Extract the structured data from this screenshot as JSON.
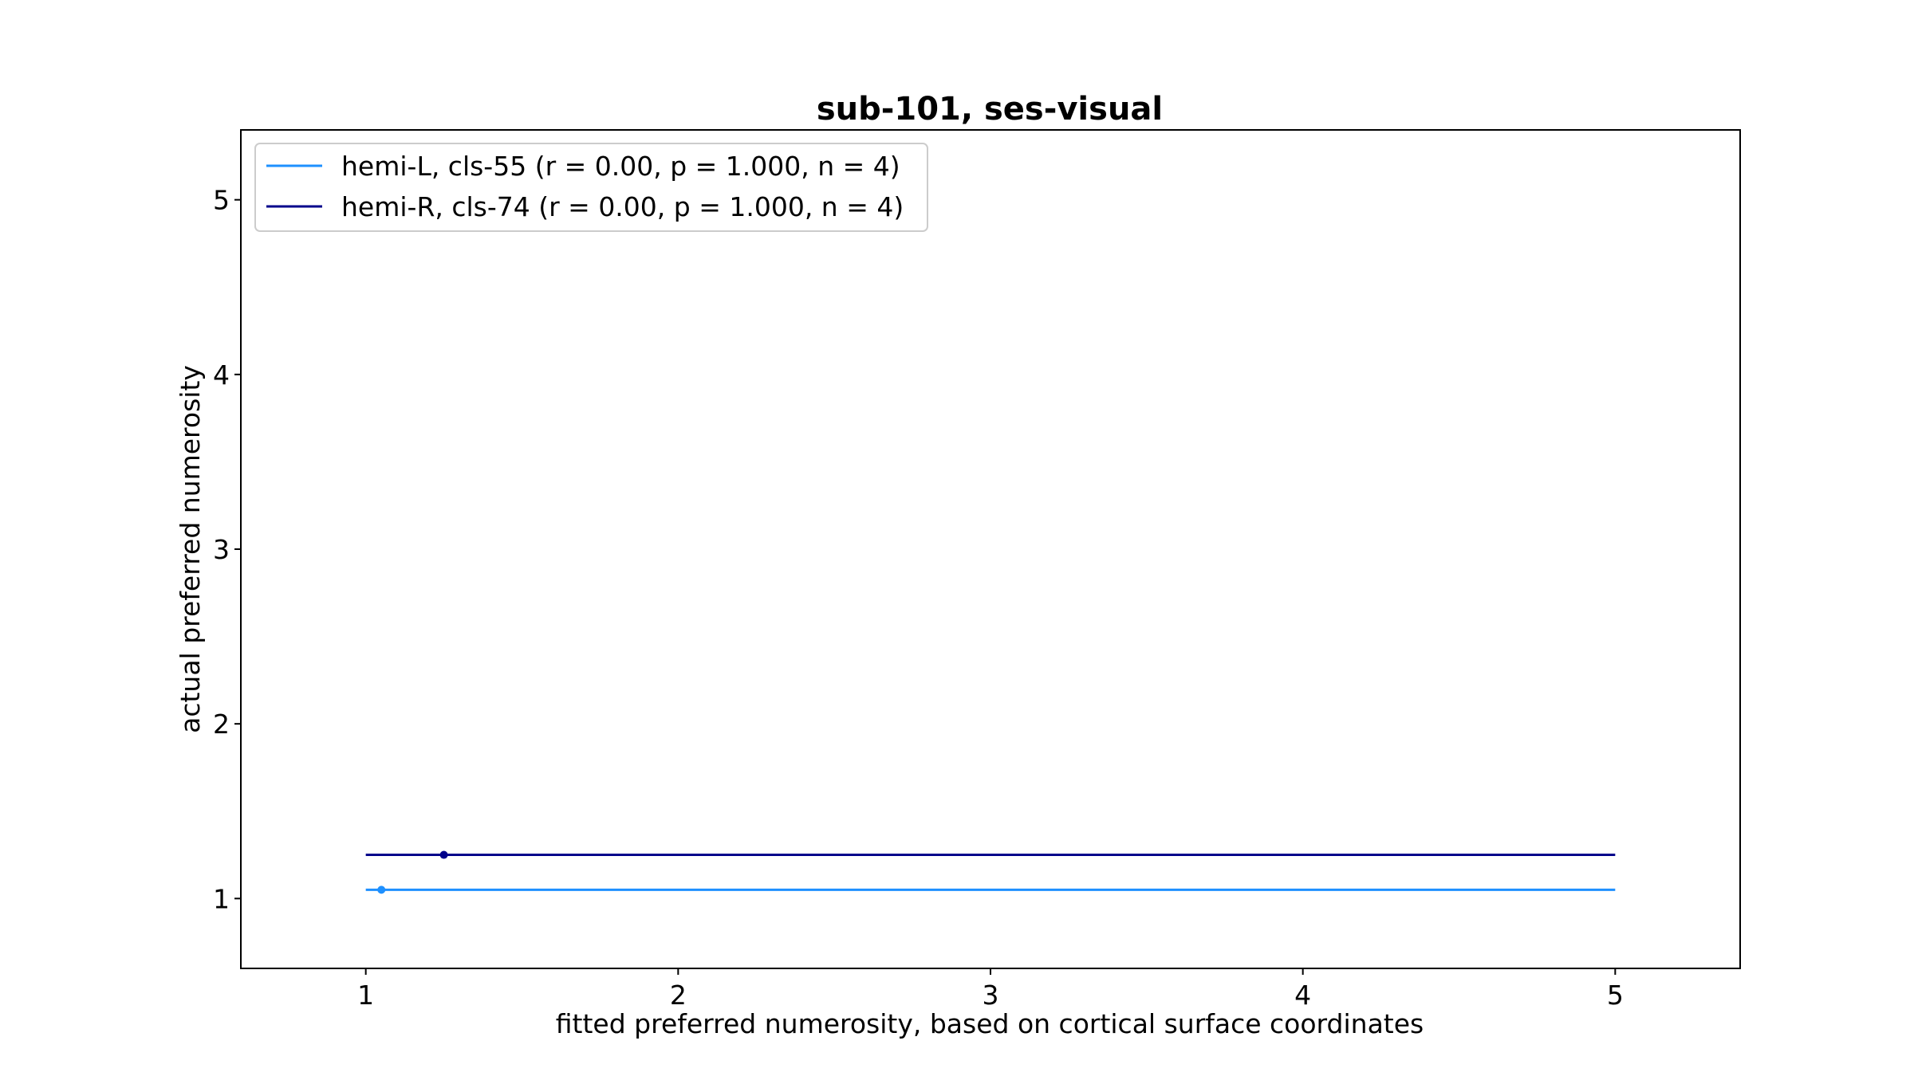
{
  "chart_data": {
    "type": "line",
    "title": "sub-101, ses-visual",
    "xlabel": "fitted preferred numerosity, based on cortical surface coordinates",
    "ylabel": "actual preferred numerosity",
    "xlim": [
      0.6,
      5.4
    ],
    "ylim": [
      0.6,
      5.4
    ],
    "xticks": [
      "1",
      "2",
      "3",
      "4",
      "5"
    ],
    "yticks": [
      "1",
      "2",
      "3",
      "4",
      "5"
    ],
    "grid": false,
    "legend_position": "top-left",
    "series": [
      {
        "name": "hemi-L, cls-55 (r = 0.00, p = 1.000, n = 4)",
        "color": "#1e90ff",
        "line": {
          "x": [
            1,
            5
          ],
          "y": [
            1.05,
            1.05
          ]
        },
        "points": [
          {
            "x": 1.05,
            "y": 1.05
          }
        ]
      },
      {
        "name": "hemi-R, cls-74 (r = 0.00, p = 1.000, n = 4)",
        "color": "#00008b",
        "line": {
          "x": [
            1,
            5
          ],
          "y": [
            1.25,
            1.25
          ]
        },
        "points": [
          {
            "x": 1.25,
            "y": 1.25
          }
        ]
      }
    ]
  }
}
